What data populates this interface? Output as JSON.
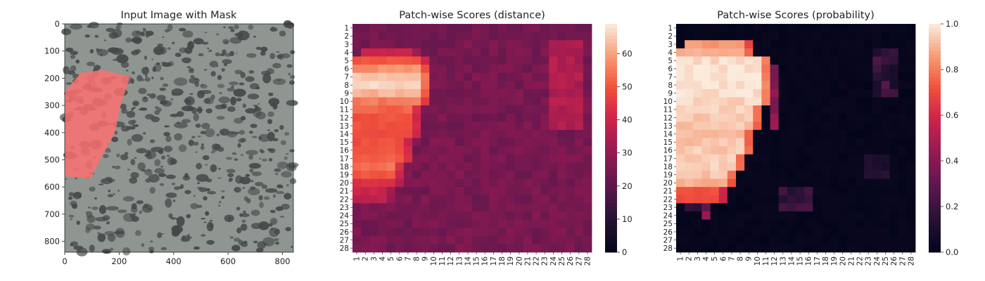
{
  "chart_data": [
    {
      "type": "image",
      "title": "Input Image with Mask",
      "xlim": [
        0,
        840
      ],
      "ylim": [
        840,
        0
      ],
      "xticks": [
        0,
        200,
        400,
        600,
        800
      ],
      "yticks": [
        0,
        100,
        200,
        300,
        400,
        500,
        600,
        700,
        800
      ],
      "image_colors": {
        "background": "#8f9590",
        "spot": "#454849",
        "mask": "#ff6f6f"
      },
      "mask_polygon": [
        [
          60,
          180
        ],
        [
          140,
          170
        ],
        [
          240,
          195
        ],
        [
          205,
          300
        ],
        [
          185,
          400
        ],
        [
          140,
          480
        ],
        [
          95,
          570
        ],
        [
          0,
          560
        ],
        [
          0,
          250
        ]
      ]
    },
    {
      "type": "heatmap",
      "title": "Patch-wise Scores (distance)",
      "rows": 28,
      "cols": 28,
      "vmin": 0,
      "vmax": 69,
      "colorbar_ticks": [
        0,
        10,
        20,
        30,
        40,
        50,
        60
      ],
      "colormap": "rocket",
      "hot_region": [
        {
          "row": 4,
          "c0": 2,
          "c1": 8,
          "level": 40
        },
        {
          "row": 5,
          "c0": 1,
          "c1": 9,
          "level": 50
        },
        {
          "row": 6,
          "c0": 1,
          "c1": 9,
          "level": 58
        },
        {
          "row": 7,
          "c0": 1,
          "c1": 9,
          "level": 65
        },
        {
          "row": 8,
          "c0": 1,
          "c1": 9,
          "level": 66
        },
        {
          "row": 9,
          "c0": 1,
          "c1": 9,
          "level": 62
        },
        {
          "row": 10,
          "c0": 1,
          "c1": 9,
          "level": 55
        },
        {
          "row": 11,
          "c0": 1,
          "c1": 8,
          "level": 52
        },
        {
          "row": 12,
          "c0": 1,
          "c1": 8,
          "level": 50
        },
        {
          "row": 13,
          "c0": 1,
          "c1": 8,
          "level": 50
        },
        {
          "row": 14,
          "c0": 1,
          "c1": 8,
          "level": 49
        },
        {
          "row": 15,
          "c0": 1,
          "c1": 7,
          "level": 49
        },
        {
          "row": 16,
          "c0": 1,
          "c1": 7,
          "level": 50
        },
        {
          "row": 17,
          "c0": 1,
          "c1": 7,
          "level": 52
        },
        {
          "row": 18,
          "c0": 1,
          "c1": 6,
          "level": 54
        },
        {
          "row": 19,
          "c0": 1,
          "c1": 6,
          "level": 50
        },
        {
          "row": 20,
          "c0": 1,
          "c1": 6,
          "level": 44
        },
        {
          "row": 21,
          "c0": 1,
          "c1": 5,
          "level": 40
        },
        {
          "row": 22,
          "c0": 1,
          "c1": 5,
          "level": 38
        }
      ]
    },
    {
      "type": "heatmap",
      "title": "Patch-wise Scores (probability)",
      "rows": 28,
      "cols": 28,
      "vmin": 0,
      "vmax": 1,
      "colorbar_ticks": [
        0.0,
        0.2,
        0.4,
        0.6,
        0.8,
        1.0
      ],
      "colormap": "rocket",
      "hot_region": [
        {
          "row": 3,
          "c0": 2,
          "c1": 9,
          "level": 0.85
        },
        {
          "row": 4,
          "c0": 1,
          "c1": 9,
          "level": 0.9
        },
        {
          "row": 5,
          "c0": 1,
          "c1": 11,
          "level": 0.97
        },
        {
          "row": 6,
          "c0": 1,
          "c1": 11,
          "level": 0.98
        },
        {
          "row": 7,
          "c0": 1,
          "c1": 11,
          "level": 0.99
        },
        {
          "row": 8,
          "c0": 1,
          "c1": 11,
          "level": 0.99
        },
        {
          "row": 9,
          "c0": 1,
          "c1": 11,
          "level": 0.98
        },
        {
          "row": 10,
          "c0": 1,
          "c1": 11,
          "level": 0.96
        },
        {
          "row": 11,
          "c0": 1,
          "c1": 10,
          "level": 0.95
        },
        {
          "row": 12,
          "c0": 1,
          "c1": 10,
          "level": 0.94
        },
        {
          "row": 13,
          "c0": 1,
          "c1": 10,
          "level": 0.93
        },
        {
          "row": 14,
          "c0": 1,
          "c1": 9,
          "level": 0.92
        },
        {
          "row": 15,
          "c0": 1,
          "c1": 9,
          "level": 0.93
        },
        {
          "row": 16,
          "c0": 1,
          "c1": 9,
          "level": 0.94
        },
        {
          "row": 17,
          "c0": 1,
          "c1": 8,
          "level": 0.95
        },
        {
          "row": 18,
          "c0": 1,
          "c1": 8,
          "level": 0.95
        },
        {
          "row": 19,
          "c0": 1,
          "c1": 7,
          "level": 0.93
        },
        {
          "row": 20,
          "c0": 1,
          "c1": 7,
          "level": 0.9
        },
        {
          "row": 21,
          "c0": 1,
          "c1": 6,
          "level": 0.72
        },
        {
          "row": 22,
          "c0": 1,
          "c1": 6,
          "level": 0.7
        }
      ]
    }
  ]
}
